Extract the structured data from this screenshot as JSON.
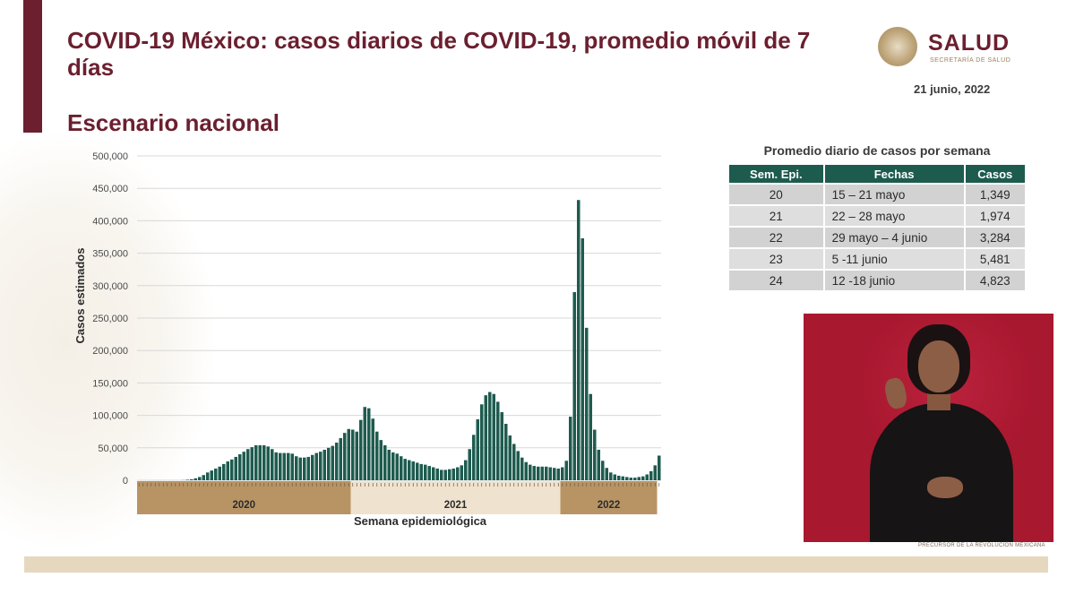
{
  "slide": {
    "title": "COVID-19 México: casos diarios de COVID-19, promedio móvil de 7 días",
    "subtitle": "Escenario nacional",
    "date": "21 junio, 2022"
  },
  "logo": {
    "word": "SALUD",
    "sub": "SECRETARÍA DE SALUD"
  },
  "footer_note": "PRECURSOR DE LA REVOLUCIÓN MEXICANA",
  "colors": {
    "bar": "#1e5b4f",
    "brand": "#6b1f2f",
    "gold": "#b89465",
    "gold_light": "#efe3cf"
  },
  "chart_data": {
    "type": "bar",
    "title": "",
    "xlabel": "Semana epidemiológica",
    "ylabel": "Casos estimados",
    "ylim": [
      0,
      500000
    ],
    "yticks": [
      0,
      50000,
      100000,
      150000,
      200000,
      250000,
      300000,
      350000,
      400000,
      450000,
      500000
    ],
    "ytick_labels": [
      "0",
      "50,000",
      "100,000",
      "150,000",
      "200,000",
      "250,000",
      "300,000",
      "350,000",
      "400,000",
      "450,000",
      "500,000"
    ],
    "grid": true,
    "year_bands": [
      {
        "label": "2020",
        "start": 0,
        "end": 53
      },
      {
        "label": "2021",
        "start": 53,
        "end": 105
      },
      {
        "label": "2022",
        "start": 105,
        "end": 129
      }
    ],
    "values": [
      0,
      0,
      0,
      0,
      0,
      0,
      0,
      0,
      0,
      0,
      0,
      200,
      800,
      1500,
      3000,
      5000,
      8000,
      12000,
      15000,
      18000,
      21000,
      25000,
      29000,
      32000,
      36000,
      40000,
      44000,
      48000,
      51000,
      54000,
      54000,
      54000,
      52000,
      48000,
      43000,
      42000,
      42000,
      42000,
      41000,
      37000,
      35000,
      35000,
      36000,
      39000,
      42000,
      44000,
      47000,
      50000,
      53000,
      58000,
      65000,
      73000,
      79000,
      78000,
      75000,
      93000,
      113000,
      111000,
      95000,
      75000,
      62000,
      54000,
      47000,
      43000,
      41000,
      37000,
      33000,
      31000,
      29000,
      27000,
      25000,
      24000,
      22000,
      20000,
      18000,
      16000,
      16000,
      17000,
      18000,
      20000,
      23000,
      31000,
      48000,
      70000,
      94000,
      117000,
      131000,
      136000,
      133000,
      121000,
      105000,
      87000,
      69000,
      56000,
      45000,
      35000,
      28000,
      24000,
      22000,
      21000,
      21000,
      21000,
      20000,
      19000,
      18000,
      20000,
      30000,
      98000,
      290000,
      432000,
      373000,
      235000,
      133000,
      78000,
      47000,
      30000,
      19000,
      12000,
      9000,
      7000,
      6000,
      5000,
      4000,
      4000,
      5000,
      6000,
      9000,
      14000,
      23000,
      38000
    ]
  },
  "weekly_table": {
    "title": "Promedio diario de casos por semana",
    "headers": [
      "Sem. Epi.",
      "Fechas",
      "Casos"
    ],
    "rows": [
      {
        "week": "20",
        "dates": "15 – 21 mayo",
        "cases": "1,349"
      },
      {
        "week": "21",
        "dates": "22 – 28 mayo",
        "cases": "1,974"
      },
      {
        "week": "22",
        "dates": "29 mayo – 4 junio",
        "cases": "3,284"
      },
      {
        "week": "23",
        "dates": "5 -11 junio",
        "cases": "5,481"
      },
      {
        "week": "24",
        "dates": "12 -18 junio",
        "cases": "4,823"
      }
    ]
  }
}
